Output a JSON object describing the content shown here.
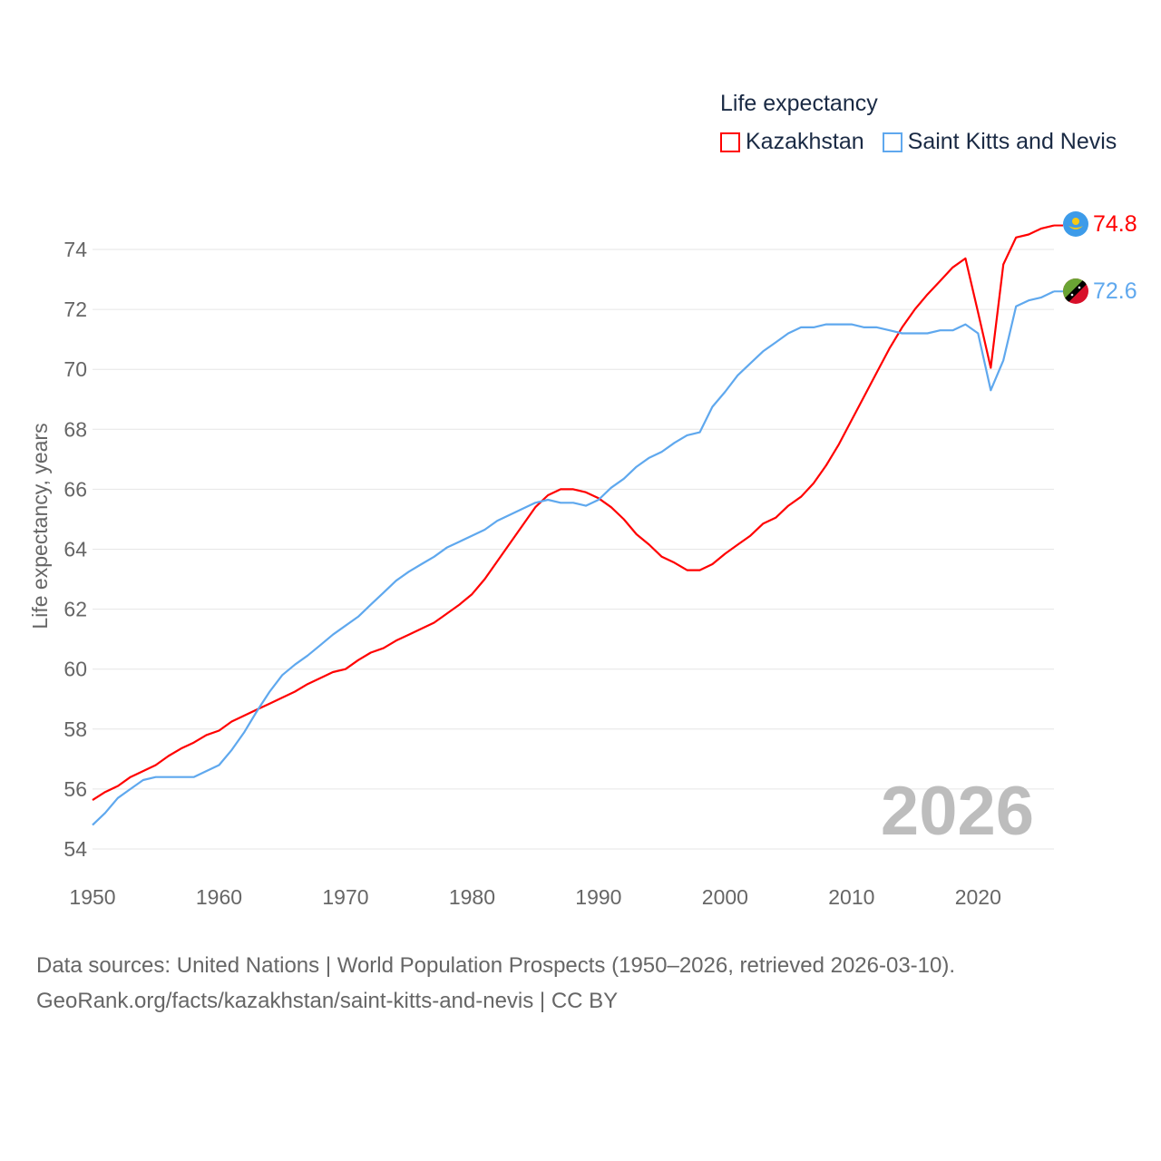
{
  "chart_data": {
    "type": "line",
    "title": "Life expectancy",
    "xlabel": "",
    "ylabel": "Life expectancy, years",
    "xlim": [
      1950,
      2026
    ],
    "ylim": [
      53.5,
      75
    ],
    "x_ticks": [
      "1950",
      "1960",
      "1970",
      "1980",
      "1990",
      "2000",
      "2010",
      "2020"
    ],
    "y_ticks": [
      "54",
      "56",
      "58",
      "60",
      "62",
      "64",
      "66",
      "68",
      "70",
      "72",
      "74"
    ],
    "grid": true,
    "legend_placement": "top-right",
    "year_watermark": "2026",
    "x_start": 1950,
    "series": [
      {
        "name": "Kazakhstan",
        "color": "#ff0000",
        "end_label": "74.8",
        "flag": "kazakhstan-flag",
        "values": [
          55.63,
          55.9,
          56.1,
          56.4,
          56.6,
          56.8,
          57.1,
          57.35,
          57.55,
          57.8,
          57.95,
          58.25,
          58.45,
          58.65,
          58.85,
          59.05,
          59.25,
          59.5,
          59.7,
          59.9,
          60.0,
          60.3,
          60.55,
          60.7,
          60.95,
          61.15,
          61.35,
          61.55,
          61.85,
          62.15,
          62.5,
          63.0,
          63.6,
          64.2,
          64.8,
          65.4,
          65.8,
          66.0,
          66.0,
          65.9,
          65.7,
          65.4,
          65.0,
          64.5,
          64.15,
          63.75,
          63.55,
          63.3,
          63.3,
          63.5,
          63.85,
          64.15,
          64.45,
          64.85,
          65.05,
          65.45,
          65.75,
          66.2,
          66.8,
          67.5,
          68.3,
          69.1,
          69.9,
          70.7,
          71.4,
          72.0,
          72.5,
          72.95,
          73.4,
          73.7,
          71.9,
          70.05,
          73.5,
          74.4,
          74.5,
          74.7,
          74.8
        ]
      },
      {
        "name": "Saint Kitts and Nevis",
        "color": "#5fa8ee",
        "end_label": "72.6",
        "flag": "saint-kitts-and-nevis-flag",
        "values": [
          54.8,
          55.2,
          55.7,
          56.0,
          56.3,
          56.4,
          56.4,
          56.4,
          56.4,
          56.6,
          56.8,
          57.3,
          57.9,
          58.6,
          59.25,
          59.8,
          60.15,
          60.45,
          60.8,
          61.15,
          61.45,
          61.75,
          62.15,
          62.55,
          62.95,
          63.25,
          63.5,
          63.75,
          64.05,
          64.25,
          64.45,
          64.65,
          64.95,
          65.15,
          65.35,
          65.55,
          65.65,
          65.55,
          65.55,
          65.45,
          65.65,
          66.05,
          66.35,
          66.75,
          67.05,
          67.25,
          67.55,
          67.8,
          67.9,
          68.75,
          69.25,
          69.8,
          70.2,
          70.6,
          70.9,
          71.2,
          71.4,
          71.4,
          71.5,
          71.5,
          71.5,
          71.4,
          71.4,
          71.3,
          71.2,
          71.2,
          71.2,
          71.3,
          71.3,
          71.5,
          71.2,
          69.3,
          70.3,
          72.1,
          72.3,
          72.4,
          72.6
        ]
      }
    ]
  },
  "source": {
    "line1": "Data sources: United Nations | World Population Prospects (1950–2026, retrieved 2026-03-10).",
    "line2": "GeoRank.org/facts/kazakhstan/saint-kitts-and-nevis | CC BY"
  }
}
